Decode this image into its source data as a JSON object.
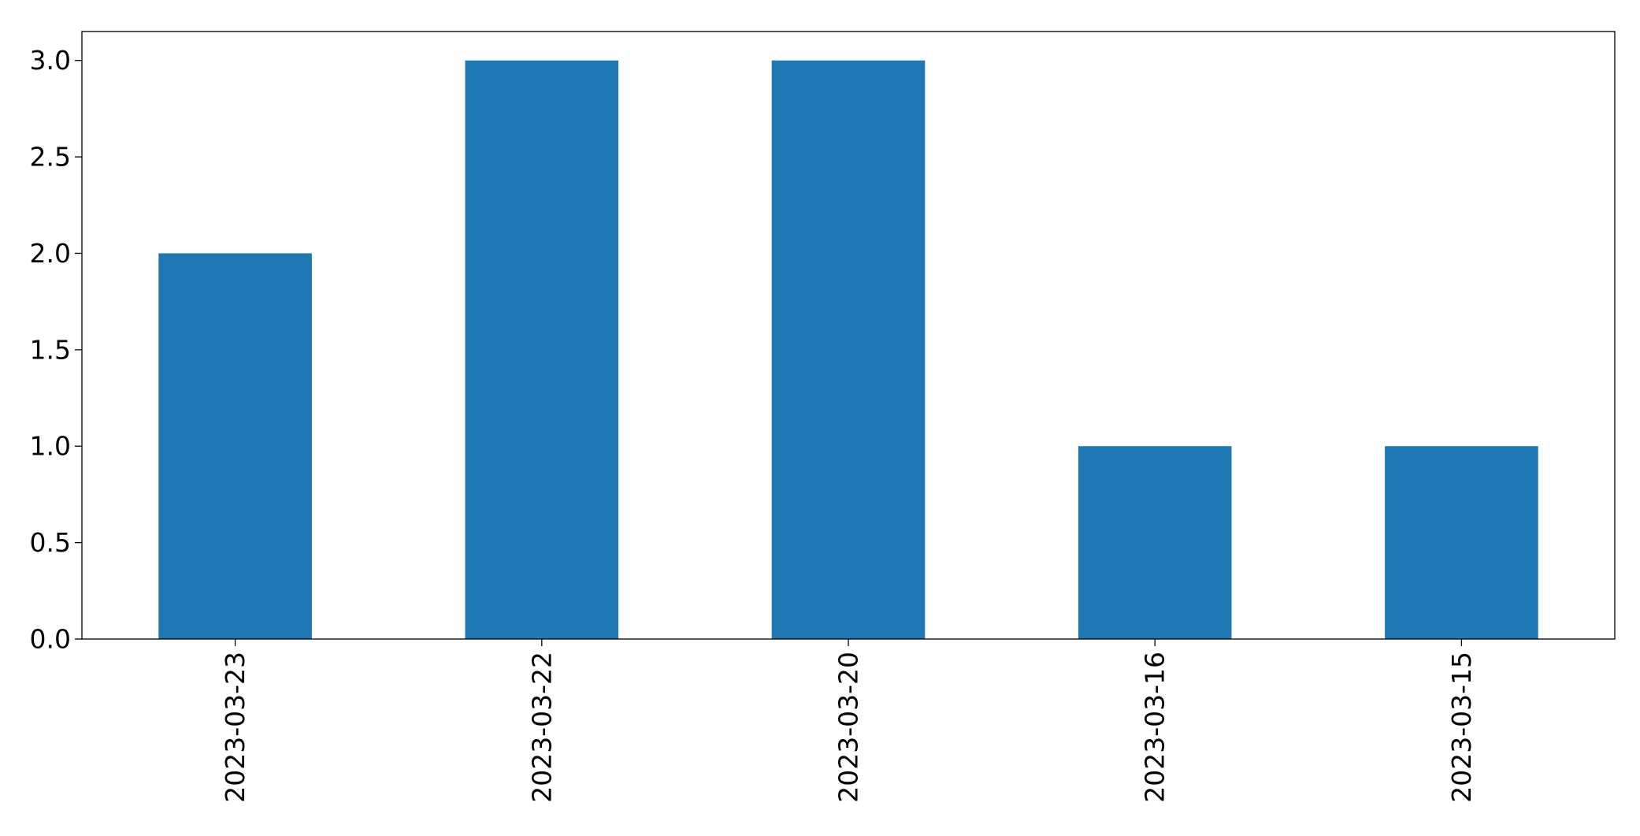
{
  "chart_data": {
    "type": "bar",
    "categories": [
      "2023-03-23",
      "2023-03-22",
      "2023-03-20",
      "2023-03-16",
      "2023-03-15"
    ],
    "values": [
      2,
      3,
      3,
      1,
      1
    ],
    "title": "",
    "xlabel": "",
    "ylabel": "",
    "ylim": [
      0,
      3.15
    ],
    "yticks": [
      0.0,
      0.5,
      1.0,
      1.5,
      2.0,
      2.5,
      3.0
    ],
    "ytick_labels": [
      "0.0",
      "0.5",
      "1.0",
      "1.5",
      "2.0",
      "2.5",
      "3.0"
    ],
    "xtick_rotation": "vertical",
    "grid": false,
    "legend": "none",
    "bar_color": "#1f77b4"
  }
}
